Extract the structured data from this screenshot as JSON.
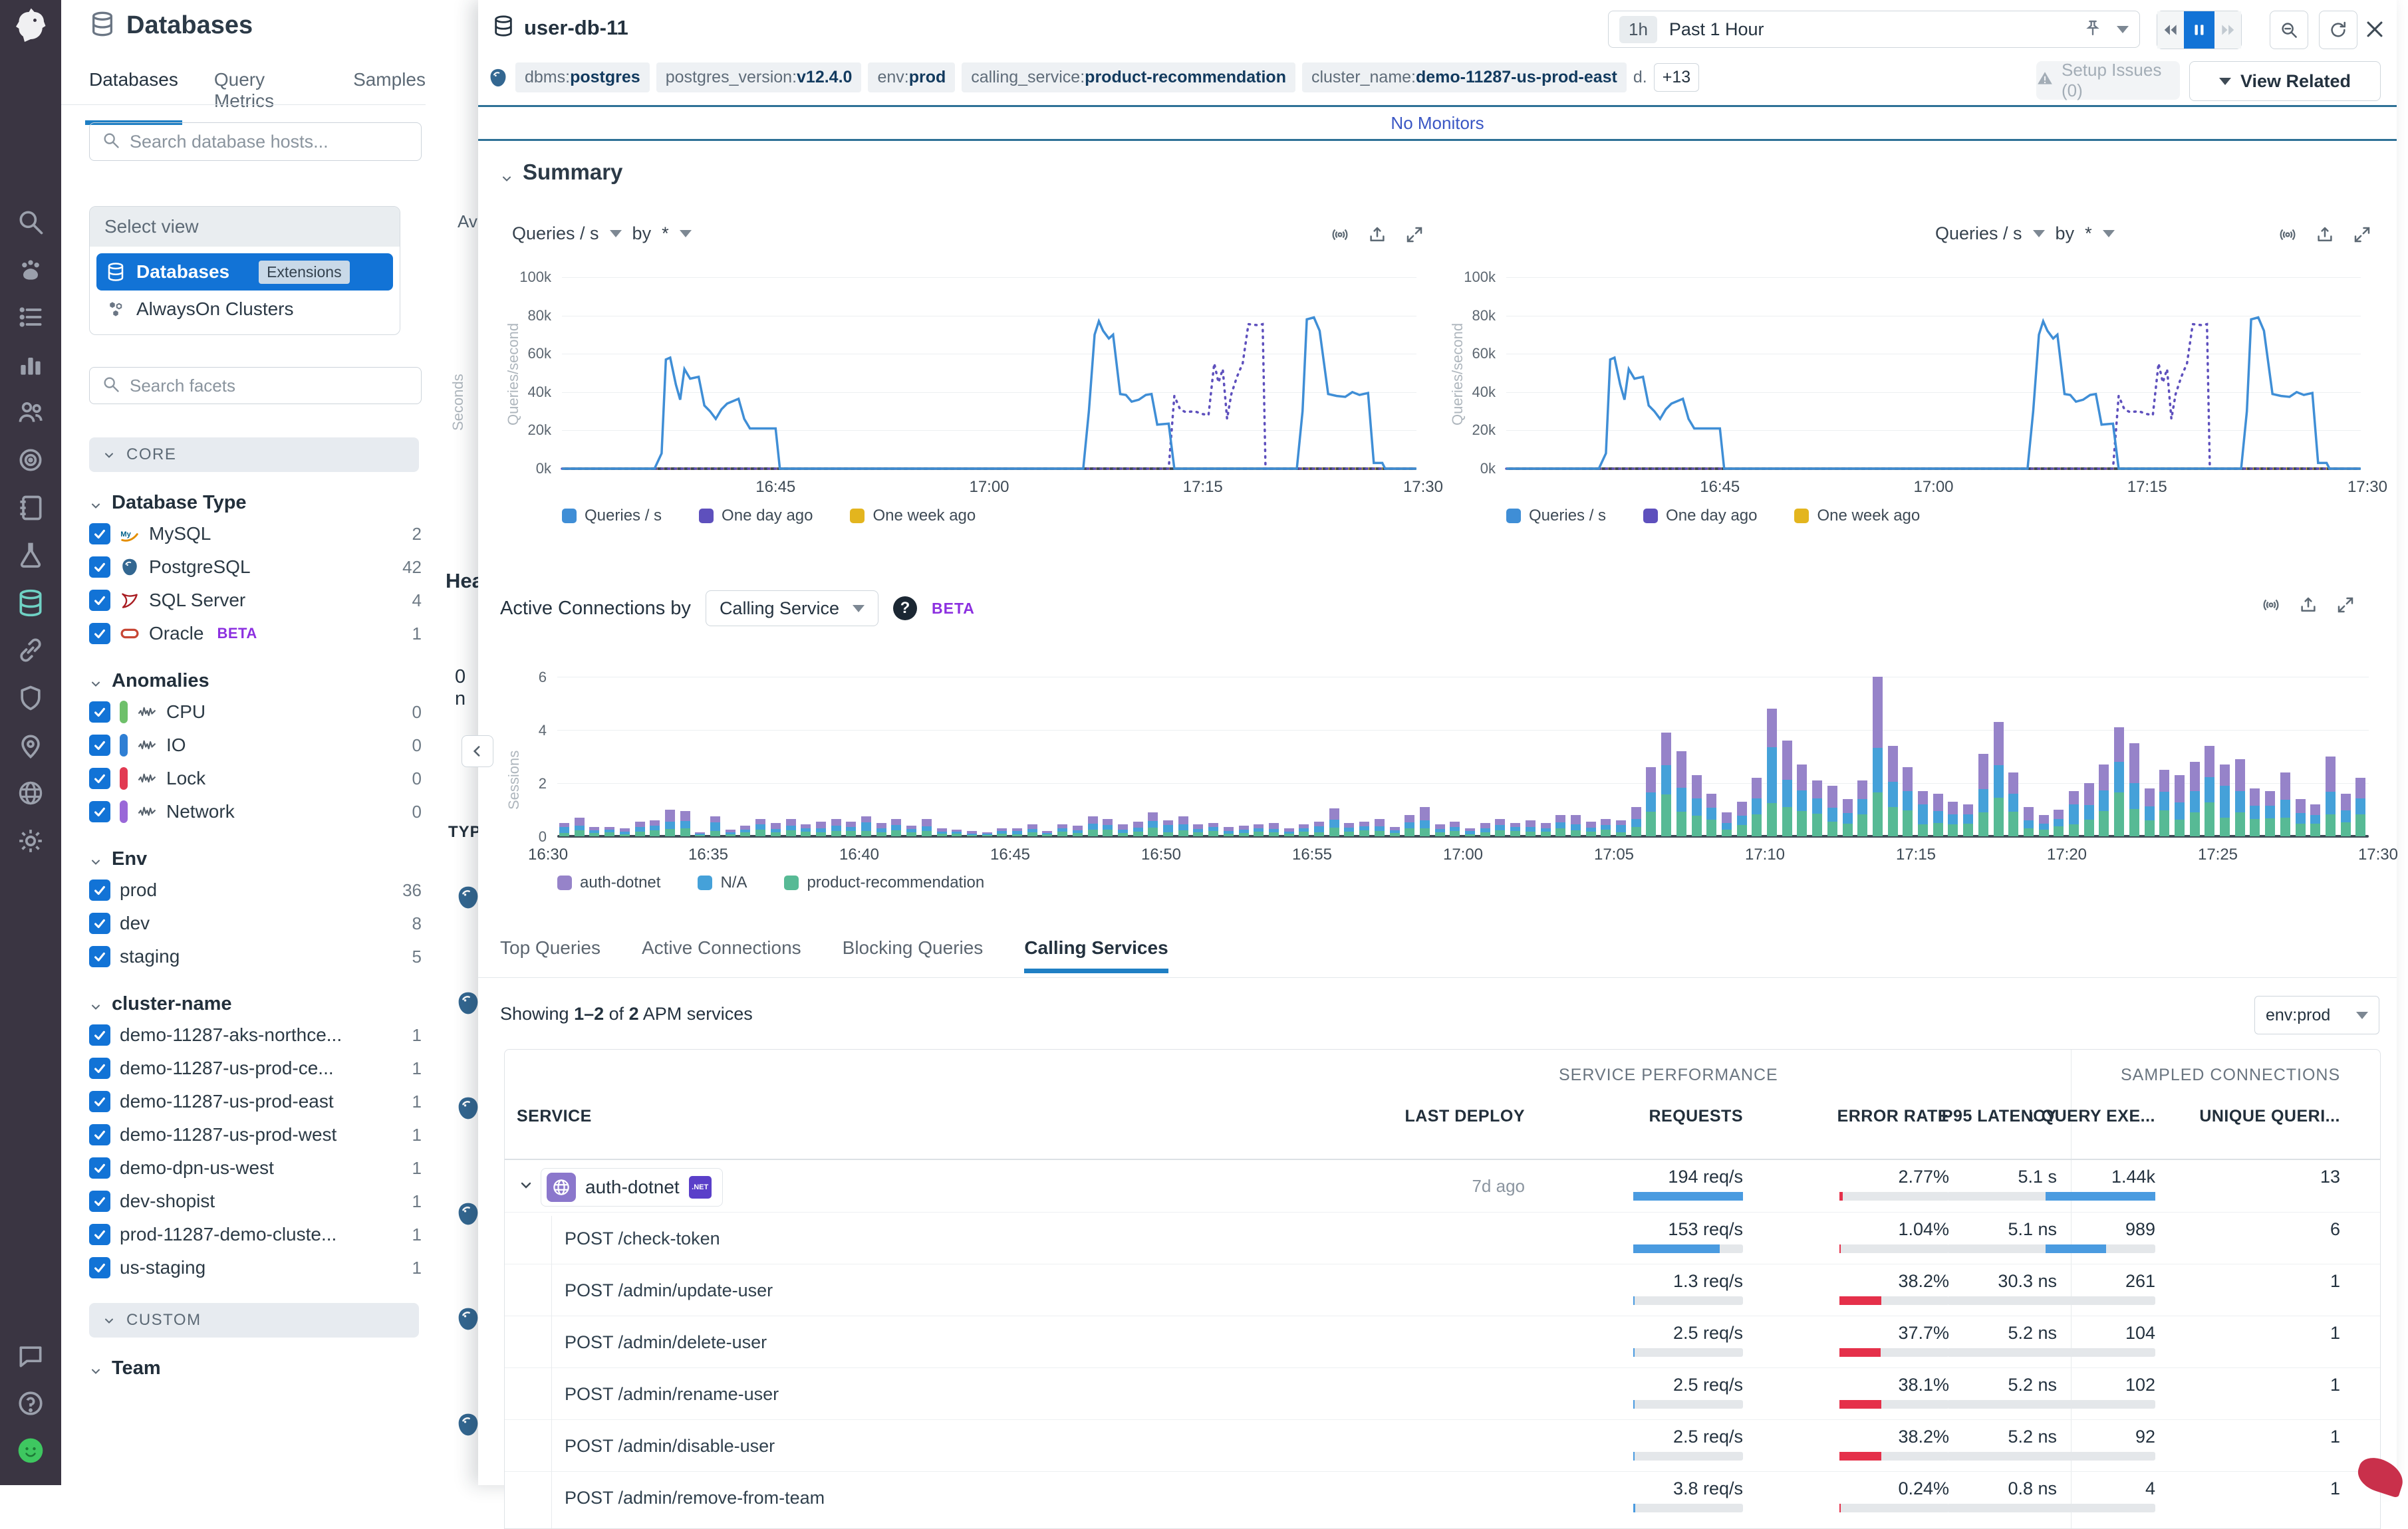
{
  "colors": {
    "accent_blue": "#1273d6",
    "link_blue": "#3a56c4",
    "tab_underline": "#1f7fc4",
    "line_blue": "#3f8ed6",
    "line_purple": "#5e50bd",
    "line_yellow": "#e3b51e",
    "bar_purple": "#9683c9",
    "bar_blue": "#45a1d9",
    "bar_green": "#57ba95",
    "error_red": "#e5304a",
    "req_bar_blue": "#4a9be0",
    "bar_track": "#e4e7ea",
    "anomaly_cpu": "#6ec06a",
    "anomaly_io": "#2f7fd4",
    "anomaly_lock": "#e23a52",
    "anomaly_network": "#9a68d8"
  },
  "rail": {
    "icons": [
      "search",
      "paw",
      "list",
      "bar-chart",
      "people",
      "target",
      "notebook",
      "flask",
      "database",
      "link",
      "shield",
      "map-pin",
      "globe",
      "gear"
    ],
    "active_icon": "database",
    "bottom_icons": [
      "chat",
      "help",
      "avatar"
    ]
  },
  "sidebar": {
    "app_title": "Databases",
    "tabs": [
      {
        "label": "Databases",
        "active": true
      },
      {
        "label": "Query Metrics",
        "active": false
      },
      {
        "label": "Samples",
        "active": false
      }
    ],
    "search_placeholder": "Search database hosts...",
    "select_view": {
      "header": "Select view",
      "items": [
        {
          "label": "Databases",
          "icon": "database",
          "badge": "Extensions",
          "active": true
        },
        {
          "label": "AlwaysOn Clusters",
          "icon": "cluster",
          "active": false
        }
      ]
    },
    "facet_search_placeholder": "Search facets",
    "sections": [
      {
        "type": "group",
        "label": "CORE"
      },
      {
        "type": "facet",
        "title": "Database Type",
        "items": [
          {
            "label": "MySQL",
            "icon": "mysql",
            "count": "2",
            "checked": true
          },
          {
            "label": "PostgreSQL",
            "icon": "postgres",
            "count": "42",
            "checked": true
          },
          {
            "label": "SQL Server",
            "icon": "sqlserver",
            "count": "4",
            "checked": true
          },
          {
            "label": "Oracle",
            "icon": "oracle",
            "beta": "BETA",
            "count": "1",
            "checked": true
          }
        ]
      },
      {
        "type": "facet",
        "title": "Anomalies",
        "items": [
          {
            "label": "CPU",
            "pill": "#6ec06a",
            "icon": "wave",
            "count": "0",
            "checked": true
          },
          {
            "label": "IO",
            "pill": "#2f7fd4",
            "icon": "wave",
            "count": "0",
            "checked": true
          },
          {
            "label": "Lock",
            "pill": "#e23a52",
            "icon": "wave",
            "count": "0",
            "checked": true
          },
          {
            "label": "Network",
            "pill": "#9a68d8",
            "icon": "wave",
            "count": "0",
            "checked": true
          }
        ]
      },
      {
        "type": "facet",
        "title": "Env",
        "items": [
          {
            "label": "prod",
            "count": "36",
            "checked": true
          },
          {
            "label": "dev",
            "count": "8",
            "checked": true
          },
          {
            "label": "staging",
            "count": "5",
            "checked": true
          }
        ]
      },
      {
        "type": "facet",
        "title": "cluster-name",
        "items": [
          {
            "label": "demo-11287-aks-northce...",
            "count": "1",
            "checked": true
          },
          {
            "label": "demo-11287-us-prod-ce...",
            "count": "1",
            "checked": true
          },
          {
            "label": "demo-11287-us-prod-east",
            "count": "1",
            "checked": true
          },
          {
            "label": "demo-11287-us-prod-west",
            "count": "1",
            "checked": true
          },
          {
            "label": "demo-dpn-us-west",
            "count": "1",
            "checked": true
          },
          {
            "label": "dev-shopist",
            "count": "1",
            "checked": true
          },
          {
            "label": "prod-11287-demo-cluste...",
            "count": "1",
            "checked": true
          },
          {
            "label": "us-staging",
            "count": "1",
            "checked": true
          }
        ]
      },
      {
        "type": "group",
        "label": "CUSTOM"
      },
      {
        "type": "facet",
        "title": "Team",
        "items": []
      }
    ]
  },
  "strip": {
    "col_header": "Av",
    "rotated_label": "Seconds",
    "heading": "Hea",
    "zero_value": "0 n",
    "type_header": "TYP",
    "collapse_icon": "chevron-left",
    "host_icon_count": 6
  },
  "panel": {
    "title": "user-db-11",
    "time": {
      "range_badge": "1h",
      "range_label": "Past 1 Hour"
    },
    "tags": [
      {
        "key": "dbms",
        "value": "postgres"
      },
      {
        "key": "postgres_version",
        "value": "v12.4.0"
      },
      {
        "key": "env",
        "value": "prod"
      },
      {
        "key": "calling_service",
        "value": "product-recommendation"
      },
      {
        "key": "cluster_name",
        "value": "demo-11287-us-prod-east"
      }
    ],
    "tags_truncated": "d.",
    "tags_more": "+13",
    "setup_issues_label": "Setup Issues (0)",
    "view_related_label": "View Related",
    "monitors_label": "No Monitors",
    "summary_label": "Summary",
    "chart_metric": "Queries / s",
    "chart_by": "by",
    "chart_star": "*",
    "active_connections_label": "Active Connections by",
    "calling_service_value": "Calling Service",
    "beta_label": "BETA",
    "tabs": [
      {
        "label": "Top Queries",
        "active": false
      },
      {
        "label": "Active Connections",
        "active": false
      },
      {
        "label": "Blocking Queries",
        "active": false
      },
      {
        "label": "Calling Services",
        "active": true
      }
    ],
    "showing": {
      "prefix": "Showing",
      "range": "1–2",
      "of": "of",
      "total": "2",
      "suffix": "APM services"
    },
    "env_filter_value": "env:prod"
  },
  "chart_data": [
    {
      "id": "queries-line",
      "type": "line",
      "title": "Queries / s",
      "ylabel": "Queries/second",
      "unit": "thousand queries/second",
      "ylim": [
        0,
        100
      ],
      "ytick_labels": [
        "0k",
        "20k",
        "40k",
        "60k",
        "80k",
        "100k"
      ],
      "ytick_values": [
        0,
        20,
        40,
        60,
        80,
        100
      ],
      "xtick_labels": [
        "16:45",
        "17:00",
        "17:15",
        "17:30"
      ],
      "xtick_minutes": [
        15,
        30,
        45,
        60
      ],
      "x_range_minutes": 60,
      "legend": [
        "Queries / s",
        "One day ago",
        "One week ago"
      ],
      "grid": true,
      "legend_position": "bottom",
      "note": "rendered twice: identical left and right summary charts",
      "series": [
        {
          "name": "Queries / s",
          "style": "solid",
          "points": [
            [
              0,
              0
            ],
            [
              6.5,
              0
            ],
            [
              7,
              8
            ],
            [
              7.3,
              57
            ],
            [
              7.6,
              58
            ],
            [
              8,
              44
            ],
            [
              8.3,
              36
            ],
            [
              8.6,
              52
            ],
            [
              9,
              47
            ],
            [
              9.6,
              48
            ],
            [
              10,
              33
            ],
            [
              10.4,
              30
            ],
            [
              10.8,
              26
            ],
            [
              11.2,
              31
            ],
            [
              11.6,
              34
            ],
            [
              12.4,
              36.5
            ],
            [
              12.8,
              26
            ],
            [
              13.2,
              21
            ],
            [
              15,
              21
            ],
            [
              15.3,
              0
            ],
            [
              36.6,
              0
            ],
            [
              37,
              30
            ],
            [
              37.4,
              70
            ],
            [
              37.7,
              77
            ],
            [
              38,
              72
            ],
            [
              38.4,
              68
            ],
            [
              38.7,
              70
            ],
            [
              39.2,
              39
            ],
            [
              39.6,
              38.5
            ],
            [
              40,
              35
            ],
            [
              40.5,
              36
            ],
            [
              41,
              38.5
            ],
            [
              41.4,
              39
            ],
            [
              41.8,
              23
            ],
            [
              42.6,
              23.5
            ],
            [
              43,
              0
            ],
            [
              51.6,
              0
            ],
            [
              52,
              30
            ],
            [
              52.3,
              78
            ],
            [
              52.8,
              79
            ],
            [
              53.2,
              72
            ],
            [
              53.8,
              39
            ],
            [
              54.4,
              38
            ],
            [
              55,
              37.5
            ],
            [
              55.5,
              40
            ],
            [
              56,
              38.5
            ],
            [
              56.6,
              39.5
            ],
            [
              57,
              3
            ],
            [
              57.6,
              3
            ],
            [
              57.8,
              0
            ],
            [
              60,
              0
            ]
          ]
        },
        {
          "name": "One day ago",
          "style": "dotted",
          "points": [
            [
              0,
              0
            ],
            [
              42.6,
              0
            ],
            [
              43,
              38
            ],
            [
              43.4,
              31
            ],
            [
              43.8,
              29.5
            ],
            [
              44.4,
              30
            ],
            [
              45,
              28.5
            ],
            [
              45.4,
              28
            ],
            [
              45.8,
              55
            ],
            [
              46.1,
              45
            ],
            [
              46.4,
              52
            ],
            [
              46.7,
              26
            ],
            [
              47,
              39
            ],
            [
              47.4,
              48
            ],
            [
              47.8,
              55
            ],
            [
              48.2,
              75.5
            ],
            [
              48.8,
              75
            ],
            [
              49.2,
              75.5
            ],
            [
              49.4,
              0
            ],
            [
              60,
              0
            ]
          ]
        },
        {
          "name": "One week ago",
          "style": "dashed",
          "points": [
            [
              0,
              0
            ],
            [
              60,
              0
            ]
          ]
        }
      ]
    },
    {
      "id": "active-connections",
      "type": "bar",
      "stacked": true,
      "ylabel": "Sessions",
      "ylim": [
        0,
        6
      ],
      "ytick_values": [
        0,
        2,
        4,
        6
      ],
      "bucket_seconds": 30,
      "x_range_minutes": 60,
      "xtick_labels": [
        "16:30",
        "16:35",
        "16:40",
        "16:45",
        "16:50",
        "16:55",
        "17:00",
        "17:05",
        "17:10",
        "17:15",
        "17:20",
        "17:25",
        "17:30"
      ],
      "legend": [
        "auth-dotnet",
        "N/A",
        "product-recommendation"
      ],
      "legend_position": "bottom",
      "grid": true,
      "series_split_estimate": {
        "product-recommendation": 0.33,
        "N/A": 0.3,
        "auth-dotnet": 0.37
      },
      "totals": [
        0.5,
        0.7,
        0.35,
        0.35,
        0.3,
        0.55,
        0.6,
        1.0,
        0.95,
        0.15,
        0.75,
        0.25,
        0.4,
        0.65,
        0.5,
        0.65,
        0.45,
        0.55,
        0.65,
        0.55,
        0.75,
        0.5,
        0.65,
        0.4,
        0.65,
        0.3,
        0.25,
        0.2,
        0.15,
        0.3,
        0.3,
        0.45,
        0.2,
        0.45,
        0.4,
        0.75,
        0.65,
        0.45,
        0.55,
        0.9,
        0.6,
        0.75,
        0.45,
        0.5,
        0.35,
        0.4,
        0.45,
        0.5,
        0.3,
        0.45,
        0.55,
        1.05,
        0.5,
        0.55,
        0.65,
        0.35,
        0.8,
        1.1,
        0.45,
        0.55,
        0.3,
        0.5,
        0.65,
        0.5,
        0.6,
        0.5,
        0.8,
        0.8,
        0.55,
        0.65,
        0.6,
        1.1,
        2.6,
        3.9,
        3.2,
        2.3,
        1.6,
        0.9,
        1.3,
        2.2,
        4.8,
        3.6,
        2.7,
        2.1,
        1.9,
        1.4,
        2.1,
        6.0,
        3.4,
        2.6,
        1.7,
        1.6,
        1.3,
        1.2,
        3.1,
        4.3,
        2.4,
        1.1,
        0.8,
        1.0,
        1.7,
        2.0,
        2.7,
        4.1,
        3.5,
        1.8,
        2.5,
        2.3,
        2.8,
        3.4,
        2.7,
        2.9,
        1.8,
        1.7,
        2.4,
        1.4,
        1.2,
        3.0,
        1.6,
        2.2
      ]
    }
  ],
  "table": {
    "group1": "SERVICE PERFORMANCE",
    "group2": "SAMPLED CONNECTIONS",
    "col_service": "SERVICE",
    "col_deploy": "LAST DEPLOY",
    "col_requests": "REQUESTS",
    "col_error": "ERROR RATE",
    "col_p95": "P95 LATENCY",
    "col_query": "QUERY EXE...",
    "col_unique": "UNIQUE QUERI...",
    "sort_icon": "arrow-down",
    "rows": [
      {
        "type": "service",
        "label": "auth-dotnet",
        "badge": ".NET",
        "icon": "globe",
        "last_deploy": "7d ago",
        "requests": "194 req/s",
        "requests_pct": 100,
        "error": "2.77%",
        "error_pct": 2.77,
        "p95": "5.1 s",
        "query": "1.44k",
        "query_pct": 100,
        "unique": "13"
      },
      {
        "type": "endpoint",
        "label": "POST /check-token",
        "requests": "153 req/s",
        "requests_pct": 79,
        "error": "1.04%",
        "error_pct": 1.04,
        "p95": "5.1 ns",
        "query": "989",
        "query_pct": 55,
        "unique": "6"
      },
      {
        "type": "endpoint",
        "label": "POST /admin/update-user",
        "requests": "1.3 req/s",
        "requests_pct": 1,
        "error": "38.2%",
        "error_pct": 38.2,
        "p95": "30.3 ns",
        "query": "261",
        "query_pct": 0,
        "unique": "1"
      },
      {
        "type": "endpoint",
        "label": "POST /admin/delete-user",
        "requests": "2.5 req/s",
        "requests_pct": 1,
        "error": "37.7%",
        "error_pct": 37.7,
        "p95": "5.2 ns",
        "query": "104",
        "query_pct": 0,
        "unique": "1"
      },
      {
        "type": "endpoint",
        "label": "POST /admin/rename-user",
        "requests": "2.5 req/s",
        "requests_pct": 1,
        "error": "38.1%",
        "error_pct": 38.1,
        "p95": "5.2 ns",
        "query": "102",
        "query_pct": 0,
        "unique": "1"
      },
      {
        "type": "endpoint",
        "label": "POST /admin/disable-user",
        "requests": "2.5 req/s",
        "requests_pct": 1,
        "error": "38.2%",
        "error_pct": 38.2,
        "p95": "5.2 ns",
        "query": "92",
        "query_pct": 0,
        "unique": "1"
      },
      {
        "type": "endpoint",
        "label": "POST /admin/remove-from-team",
        "requests": "3.8 req/s",
        "requests_pct": 2,
        "error": "0.24%",
        "error_pct": 0.24,
        "p95": "0.8 ns",
        "query": "4",
        "query_pct": 0,
        "unique": "1"
      }
    ]
  }
}
